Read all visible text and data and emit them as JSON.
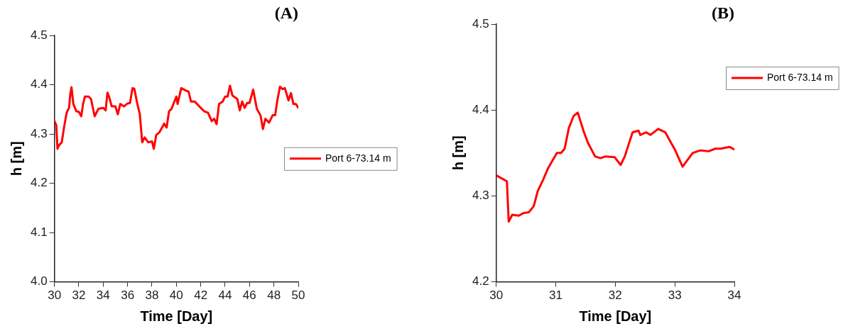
{
  "chart_data": [
    {
      "type": "line",
      "title": "(A)",
      "xlabel": "Time [Day]",
      "ylabel": "h [m]",
      "xlim": [
        30,
        50
      ],
      "xticks": [
        30,
        32,
        34,
        36,
        38,
        40,
        42,
        44,
        46,
        48,
        50
      ],
      "ylim": [
        4.0,
        4.5
      ],
      "yticks": [
        {
          "value": 4.0,
          "label": "4.0"
        },
        4.1,
        4.2,
        4.3,
        4.4,
        4.5
      ],
      "grid": false,
      "legend": "right",
      "marker": "none",
      "line_style": "solid",
      "series": [
        {
          "name": "Port 6-73.14 m",
          "color": "#ff0000",
          "x": [
            30.0,
            30.15,
            30.25,
            30.4,
            30.6,
            30.8,
            31.0,
            31.2,
            31.3,
            31.4,
            31.55,
            31.8,
            32.0,
            32.2,
            32.35,
            32.5,
            32.8,
            33.0,
            33.3,
            33.6,
            34.0,
            34.2,
            34.35,
            34.5,
            34.7,
            35.0,
            35.2,
            35.4,
            35.7,
            36.0,
            36.2,
            36.4,
            36.55,
            36.8,
            37.0,
            37.2,
            37.4,
            37.7,
            38.0,
            38.15,
            38.35,
            38.6,
            39.0,
            39.2,
            39.4,
            39.6,
            40.0,
            40.1,
            40.4,
            40.8,
            41.0,
            41.2,
            41.5,
            42.0,
            42.3,
            42.6,
            42.9,
            43.1,
            43.3,
            43.5,
            43.8,
            44.0,
            44.2,
            44.4,
            44.6,
            45.0,
            45.2,
            45.4,
            45.6,
            45.8,
            46.0,
            46.3,
            46.6,
            46.9,
            47.1,
            47.3,
            47.6,
            47.9,
            48.1,
            48.3,
            48.5,
            48.7,
            48.9,
            49.2,
            49.4,
            49.6,
            49.8,
            50.0
          ],
          "values": [
            4.326,
            4.318,
            4.27,
            4.278,
            4.283,
            4.315,
            4.343,
            4.353,
            4.381,
            4.395,
            4.361,
            4.346,
            4.345,
            4.336,
            4.361,
            4.376,
            4.376,
            4.371,
            4.336,
            4.351,
            4.353,
            4.348,
            4.384,
            4.374,
            4.356,
            4.356,
            4.34,
            4.361,
            4.356,
            4.362,
            4.363,
            4.393,
            4.392,
            4.361,
            4.341,
            4.283,
            4.293,
            4.283,
            4.285,
            4.27,
            4.298,
            4.303,
            4.321,
            4.313,
            4.346,
            4.351,
            4.376,
            4.361,
            4.393,
            4.388,
            4.386,
            4.366,
            4.366,
            4.353,
            4.346,
            4.343,
            4.326,
            4.331,
            4.32,
            4.361,
            4.366,
            4.376,
            4.376,
            4.398,
            4.378,
            4.371,
            4.348,
            4.366,
            4.353,
            4.363,
            4.363,
            4.39,
            4.351,
            4.338,
            4.31,
            4.331,
            4.323,
            4.338,
            4.338,
            4.371,
            4.396,
            4.391,
            4.393,
            4.368,
            4.383,
            4.361,
            4.361,
            4.353
          ]
        }
      ]
    },
    {
      "type": "line",
      "title": "(B)",
      "xlabel": "Time [Day]",
      "ylabel": "h [m]",
      "xlim": [
        30,
        34
      ],
      "xticks": [
        30,
        31,
        32,
        33,
        34
      ],
      "ylim": [
        4.2,
        4.5
      ],
      "yticks": [
        4.2,
        4.3,
        4.4,
        4.5
      ],
      "grid": false,
      "legend": "top right",
      "marker": "none",
      "line_style": "solid",
      "series": [
        {
          "name": "Port 6-73.14 m",
          "color": "#ff0000",
          "x": [
            30.0,
            30.18,
            30.21,
            30.27,
            30.38,
            30.46,
            30.55,
            30.63,
            30.7,
            30.79,
            30.87,
            31.02,
            31.09,
            31.15,
            31.22,
            31.3,
            31.37,
            31.47,
            31.54,
            31.66,
            31.75,
            31.84,
            31.99,
            32.09,
            32.16,
            32.29,
            32.39,
            32.42,
            32.52,
            32.59,
            32.72,
            32.84,
            33.0,
            33.13,
            33.3,
            33.43,
            33.57,
            33.68,
            33.77,
            33.92,
            34.0
          ],
          "values": [
            4.324,
            4.317,
            4.27,
            4.278,
            4.277,
            4.28,
            4.281,
            4.288,
            4.306,
            4.319,
            4.332,
            4.35,
            4.35,
            4.355,
            4.379,
            4.393,
            4.397,
            4.375,
            4.362,
            4.346,
            4.344,
            4.346,
            4.345,
            4.336,
            4.346,
            4.374,
            4.376,
            4.371,
            4.374,
            4.371,
            4.378,
            4.374,
            4.354,
            4.334,
            4.35,
            4.353,
            4.352,
            4.355,
            4.355,
            4.357,
            4.354
          ]
        }
      ]
    }
  ]
}
